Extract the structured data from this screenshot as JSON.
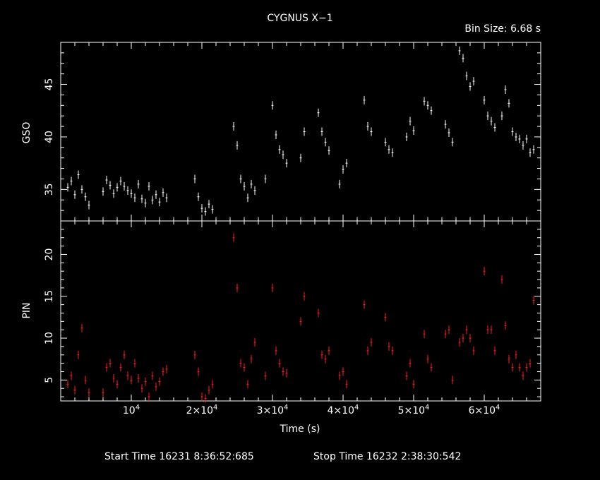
{
  "header": {
    "title": "CYGNUS X−1",
    "bin_size": "Bin Size:  6.68  s"
  },
  "footer": {
    "start_time": "Start Time 16231  8:36:52:685",
    "stop_time": "Stop Time 16232  2:38:30:542"
  },
  "chart_data": [
    {
      "type": "scatter",
      "name": "GSO panel",
      "ylabel": "GSO",
      "xlim": [
        0,
        68000
      ],
      "ylim": [
        32,
        49
      ],
      "yticks": [
        35,
        40,
        45
      ],
      "colors": {
        "points": "#ffffff"
      },
      "series": [
        {
          "x": [
            1000,
            1500,
            2000,
            2500,
            3000,
            3500,
            4000,
            6000,
            6500,
            7000,
            7500,
            8000,
            8500,
            9000,
            9500,
            10000,
            10500,
            11000,
            11500,
            12000,
            12500,
            13000,
            13500,
            14000,
            14500,
            15000,
            19000,
            19500,
            20000,
            20500,
            21000,
            21500,
            24500,
            25000,
            25500,
            26000,
            26500,
            27000,
            27500,
            29000,
            30000,
            30500,
            31000,
            31500,
            32000,
            34000,
            34500,
            36500,
            37000,
            37500,
            38000,
            39500,
            40000,
            40500,
            43000,
            43500,
            44000,
            46000,
            46500,
            47000,
            49000,
            49500,
            50000,
            51500,
            52000,
            52500,
            54500,
            55000,
            55500,
            56500,
            57000,
            57500,
            58000,
            58500,
            60000,
            60500,
            61000,
            61500,
            62500,
            63000,
            63500,
            64000,
            64500,
            65000,
            65500,
            66000,
            66500,
            67000
          ],
          "y": [
            35.2,
            35.8,
            34.5,
            36.4,
            35.0,
            34.3,
            33.5,
            34.8,
            35.9,
            35.4,
            34.6,
            35.2,
            35.8,
            35.3,
            34.9,
            34.6,
            34.2,
            35.5,
            34.1,
            33.7,
            35.3,
            34.0,
            34.5,
            33.8,
            34.7,
            34.2,
            36.0,
            34.3,
            33.2,
            32.9,
            33.6,
            33.1,
            41.0,
            39.2,
            36.0,
            35.3,
            34.2,
            35.5,
            34.9,
            36.0,
            43.0,
            40.2,
            38.8,
            38.3,
            37.5,
            38.0,
            40.5,
            42.3,
            40.5,
            39.5,
            38.7,
            35.5,
            36.9,
            37.5,
            43.5,
            41.0,
            40.5,
            39.5,
            38.8,
            38.5,
            40.0,
            41.5,
            40.6,
            43.4,
            43.0,
            42.5,
            41.2,
            40.4,
            39.5,
            48.2,
            47.5,
            45.8,
            44.8,
            45.3,
            43.5,
            42.0,
            41.5,
            40.9,
            42.0,
            44.5,
            43.2,
            40.5,
            40.0,
            39.8,
            39.2,
            39.8,
            38.5,
            38.8
          ]
        }
      ]
    },
    {
      "type": "scatter",
      "name": "PIN panel",
      "xlabel": "Time (s)",
      "ylabel": "PIN",
      "xlim": [
        0,
        68000
      ],
      "ylim": [
        2.5,
        24
      ],
      "yticks": [
        5,
        10,
        15,
        20
      ],
      "xticks": [
        10000,
        20000,
        30000,
        40000,
        50000,
        60000
      ],
      "xtick_labels": [
        "10^4",
        "2×10^4",
        "3×10^4",
        "4×10^4",
        "5×10^4",
        "6×10^4"
      ],
      "colors": {
        "points": "#ff1c1c"
      },
      "series": [
        {
          "x": [
            1000,
            1500,
            2000,
            2500,
            3000,
            3500,
            4000,
            6000,
            6500,
            7000,
            7500,
            8000,
            8500,
            9000,
            9500,
            10000,
            10500,
            11000,
            11500,
            12000,
            12500,
            13000,
            13500,
            14000,
            14500,
            15000,
            19000,
            19500,
            20000,
            20500,
            21000,
            21500,
            24500,
            25000,
            25500,
            26000,
            26500,
            27000,
            27500,
            29000,
            30000,
            30500,
            31000,
            31500,
            32000,
            34000,
            34500,
            36500,
            37000,
            37500,
            38000,
            39500,
            40000,
            40500,
            43000,
            43500,
            44000,
            46000,
            46500,
            47000,
            49000,
            49500,
            50000,
            51500,
            52000,
            52500,
            54500,
            55000,
            55500,
            56500,
            57000,
            57500,
            58000,
            58500,
            60000,
            60500,
            61000,
            61500,
            62500,
            63000,
            63500,
            64000,
            64500,
            65000,
            65500,
            66000,
            66500,
            67000
          ],
          "y": [
            4.5,
            5.5,
            3.8,
            8.0,
            11.2,
            5.0,
            3.5,
            3.5,
            6.5,
            7.0,
            5.2,
            4.5,
            6.5,
            8.0,
            5.5,
            5.0,
            7.0,
            5.2,
            4.0,
            4.8,
            3.0,
            5.5,
            4.2,
            4.8,
            6.0,
            6.3,
            8.0,
            6.0,
            3.0,
            2.8,
            3.8,
            4.5,
            22.0,
            16.0,
            7.0,
            6.5,
            4.5,
            7.5,
            9.5,
            5.5,
            16.0,
            8.5,
            7.0,
            6.0,
            5.8,
            12.0,
            15.0,
            13.0,
            8.0,
            7.5,
            8.5,
            5.5,
            6.0,
            4.5,
            14.0,
            8.5,
            9.5,
            12.5,
            9.0,
            8.5,
            5.5,
            7.0,
            4.5,
            10.5,
            7.5,
            6.5,
            10.5,
            11.0,
            5.0,
            9.5,
            10.0,
            11.0,
            10.0,
            8.5,
            18.0,
            11.0,
            11.0,
            8.5,
            17.0,
            11.5,
            7.5,
            6.5,
            8.0,
            6.5,
            5.5,
            6.5,
            7.0,
            14.5
          ]
        }
      ]
    }
  ]
}
